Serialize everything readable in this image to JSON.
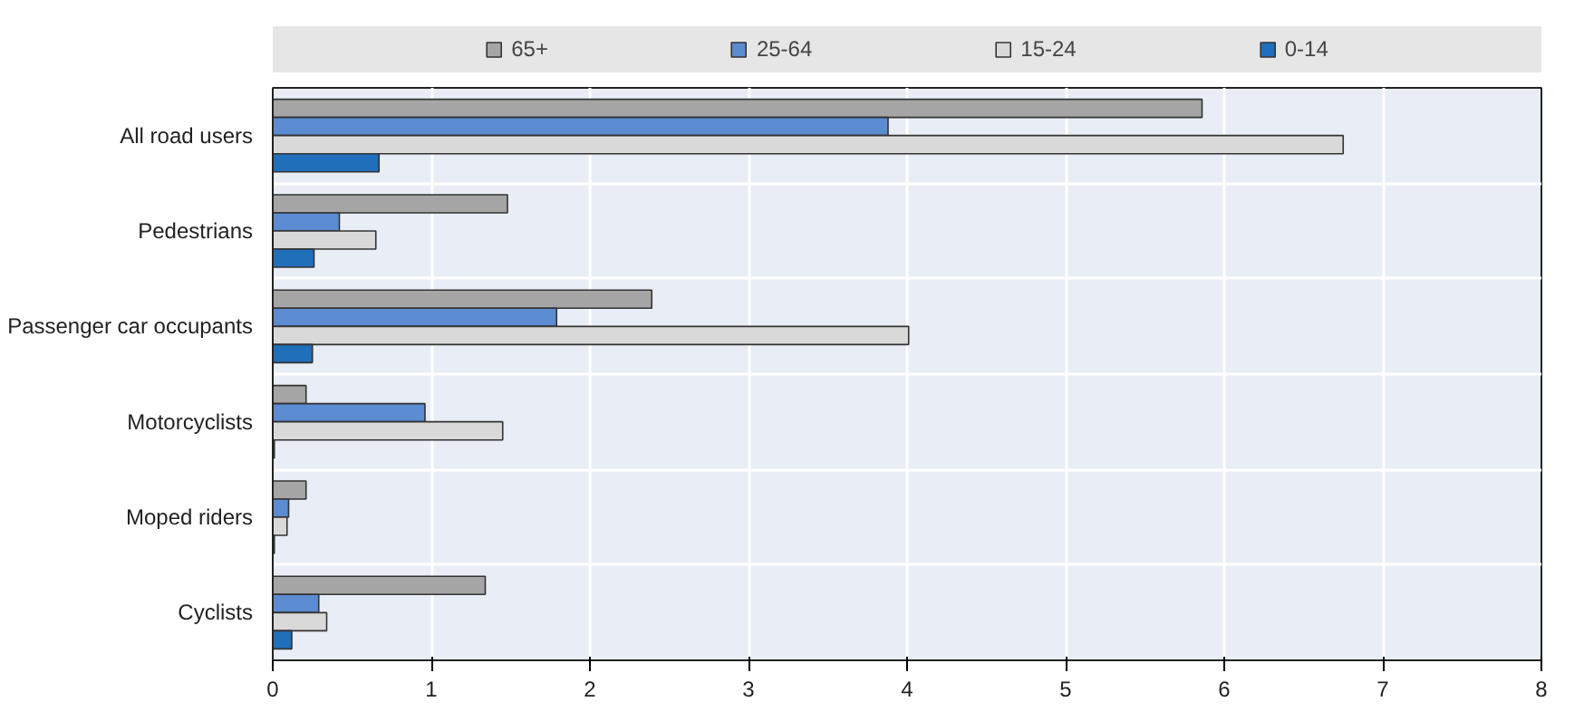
{
  "chart_data": {
    "type": "bar",
    "orientation": "horizontal",
    "categories": [
      "All road users",
      "Pedestrians",
      "Passenger car occupants",
      "Motorcyclists",
      "Moped riders",
      "Cyclists"
    ],
    "series": [
      {
        "name": "65+",
        "color": "#a5a5a5",
        "values": [
          5.86,
          1.48,
          2.39,
          0.21,
          0.21,
          1.34
        ]
      },
      {
        "name": "25-64",
        "color": "#5b8bd0",
        "values": [
          3.88,
          0.42,
          1.79,
          0.96,
          0.1,
          0.29
        ]
      },
      {
        "name": "15-24",
        "color": "#d9d9d9",
        "values": [
          6.75,
          0.65,
          4.01,
          1.45,
          0.09,
          0.34
        ]
      },
      {
        "name": "0-14",
        "color": "#1f6fba",
        "values": [
          0.67,
          0.26,
          0.25,
          0.01,
          0.01,
          0.12
        ]
      }
    ],
    "xlim": [
      0,
      8
    ],
    "xticks": [
      0,
      1,
      2,
      3,
      4,
      5,
      6,
      7,
      8
    ],
    "grid": true,
    "legend": "top"
  }
}
